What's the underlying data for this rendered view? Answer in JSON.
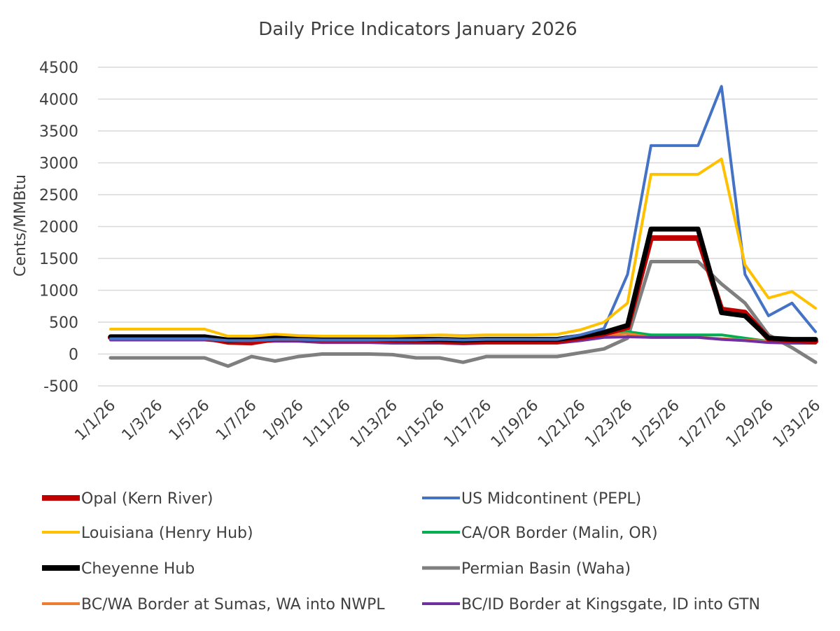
{
  "chart_data": {
    "type": "line",
    "title": "Daily Price Indicators January 2026",
    "xlabel": "",
    "ylabel": "Cents/MMBtu",
    "ylim": [
      -500,
      4500
    ],
    "ytick_step": 500,
    "yticks": [
      "-500",
      "0",
      "500",
      "1000",
      "1500",
      "2000",
      "2500",
      "3000",
      "3500",
      "4000",
      "4500"
    ],
    "grid": true,
    "legend_position": "bottom",
    "x": [
      "1/1/26",
      "1/2/26",
      "1/3/26",
      "1/4/26",
      "1/5/26",
      "1/6/26",
      "1/7/26",
      "1/8/26",
      "1/9/26",
      "1/10/26",
      "1/11/26",
      "1/12/26",
      "1/13/26",
      "1/14/26",
      "1/15/26",
      "1/16/26",
      "1/17/26",
      "1/18/26",
      "1/19/26",
      "1/20/26",
      "1/21/26",
      "1/22/26",
      "1/23/26",
      "1/24/26",
      "1/25/26",
      "1/26/26",
      "1/27/26",
      "1/28/26",
      "1/29/26",
      "1/30/26",
      "1/31/26"
    ],
    "x_tick_labels_shown": [
      "1/1/26",
      "1/3/26",
      "1/5/26",
      "1/7/26",
      "1/9/26",
      "1/11/26",
      "1/13/26",
      "1/15/26",
      "1/17/26",
      "1/19/26",
      "1/21/26",
      "1/23/26",
      "1/25/26",
      "1/27/26",
      "1/29/26",
      "1/31/26"
    ],
    "series": [
      {
        "name": "Permian Basin (Waha)",
        "color": "#7f7f7f",
        "values": [
          -60,
          -60,
          -60,
          -60,
          -60,
          -190,
          -40,
          -110,
          -40,
          0,
          0,
          0,
          -10,
          -60,
          -60,
          -130,
          -40,
          -40,
          -40,
          -40,
          20,
          80,
          250,
          1450,
          1450,
          1450,
          1100,
          800,
          300,
          100,
          -130
        ]
      },
      {
        "name": "CA/OR Border (Malin, OR)",
        "color": "#00b050",
        "values": [
          240,
          240,
          240,
          240,
          240,
          200,
          200,
          220,
          210,
          200,
          200,
          200,
          200,
          200,
          200,
          190,
          200,
          200,
          200,
          200,
          230,
          280,
          350,
          300,
          300,
          300,
          300,
          250,
          200,
          190,
          190
        ]
      },
      {
        "name": "BC/WA Border at Sumas, WA into NWPL",
        "color": "#ed7d31",
        "values": [
          230,
          230,
          230,
          230,
          230,
          200,
          200,
          210,
          200,
          190,
          190,
          190,
          190,
          190,
          190,
          180,
          190,
          190,
          190,
          190,
          230,
          300,
          320,
          260,
          260,
          260,
          240,
          220,
          200,
          180,
          180
        ]
      },
      {
        "name": "BC/ID Border at Kingsgate, ID into GTN",
        "color": "#7030a0",
        "values": [
          220,
          220,
          220,
          220,
          220,
          190,
          190,
          200,
          200,
          180,
          180,
          180,
          170,
          170,
          170,
          160,
          170,
          170,
          170,
          170,
          210,
          260,
          270,
          260,
          260,
          260,
          230,
          210,
          180,
          170,
          170
        ]
      },
      {
        "name": "Opal (Kern River)",
        "color": "#c00000",
        "values": [
          260,
          260,
          260,
          260,
          260,
          190,
          180,
          240,
          240,
          230,
          230,
          230,
          220,
          210,
          210,
          190,
          200,
          200,
          200,
          200,
          260,
          320,
          420,
          1820,
          1820,
          1820,
          700,
          650,
          240,
          220,
          200
        ]
      },
      {
        "name": "Cheyenne Hub",
        "color": "#000000",
        "values": [
          270,
          270,
          270,
          270,
          270,
          220,
          230,
          260,
          260,
          240,
          240,
          240,
          230,
          230,
          230,
          220,
          230,
          230,
          230,
          230,
          280,
          340,
          450,
          1960,
          1960,
          1960,
          650,
          600,
          250,
          230,
          230
        ]
      },
      {
        "name": "US Midcontinent (PEPL)",
        "color": "#4472c4",
        "values": [
          240,
          240,
          240,
          240,
          240,
          210,
          210,
          230,
          230,
          220,
          220,
          220,
          220,
          220,
          230,
          220,
          230,
          230,
          230,
          230,
          300,
          400,
          1250,
          3270,
          3270,
          3270,
          4200,
          1250,
          600,
          800,
          350
        ]
      },
      {
        "name": "Louisiana (Henry Hub)",
        "color": "#ffc000",
        "values": [
          390,
          390,
          390,
          390,
          390,
          280,
          280,
          310,
          290,
          280,
          280,
          280,
          280,
          290,
          300,
          290,
          300,
          300,
          300,
          310,
          380,
          500,
          800,
          2820,
          2820,
          2820,
          3060,
          1400,
          880,
          980,
          720
        ]
      }
    ]
  },
  "legend": [
    {
      "label": "Opal (Kern River)",
      "color": "#c00000",
      "width": 8
    },
    {
      "label": "US Midcontinent (PEPL)",
      "color": "#4472c4",
      "width": 4
    },
    {
      "label": "Louisiana (Henry Hub)",
      "color": "#ffc000",
      "width": 4
    },
    {
      "label": "CA/OR Border (Malin, OR)",
      "color": "#00b050",
      "width": 4
    },
    {
      "label": "Cheyenne Hub",
      "color": "#000000",
      "width": 8
    },
    {
      "label": "Permian Basin (Waha)",
      "color": "#7f7f7f",
      "width": 5
    },
    {
      "label": "BC/WA Border at Sumas, WA into NWPL",
      "color": "#ed7d31",
      "width": 4
    },
    {
      "label": "BC/ID Border at Kingsgate, ID into GTN",
      "color": "#7030a0",
      "width": 4
    }
  ]
}
